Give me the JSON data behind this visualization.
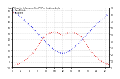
{
  "title_text": "Solar PV/Inverter Performance  Sun  PV Pan   Incidence Angle",
  "blue_color": "#0000dd",
  "red_color": "#dd0000",
  "bg_color": "#ffffff",
  "grid_color": "#aaaaaa",
  "ylim_left": [
    -10,
    95
  ],
  "xlim": [
    0,
    23
  ],
  "yticks_left": [
    -10,
    0,
    10,
    20,
    30,
    40,
    50,
    60,
    70,
    80,
    90
  ],
  "ytick_labels_left": [
    "-10",
    "0",
    "10",
    "20",
    "30",
    "40",
    "50",
    "60",
    "70",
    "80",
    "90"
  ],
  "yticks_right": [
    0,
    10,
    20,
    30,
    40,
    50,
    60,
    70,
    80,
    90
  ],
  "ytick_labels_right": [
    "0",
    "10",
    "20",
    "30",
    "40",
    "50",
    "60",
    "70",
    "80",
    "90"
  ],
  "xticks": [
    0,
    2,
    4,
    6,
    8,
    10,
    12,
    14,
    16,
    18,
    20,
    22
  ],
  "legend_blue": "Sun Altitude",
  "legend_red": "Incidence",
  "blue_x": [
    0,
    1,
    2,
    3,
    4,
    5,
    6,
    7,
    8,
    9,
    10,
    11,
    12,
    13,
    14,
    15,
    16,
    17,
    18,
    19,
    20,
    21,
    22,
    23
  ],
  "blue_y": [
    90,
    84,
    78,
    72,
    65,
    58,
    50,
    42,
    34,
    27,
    21,
    17,
    15,
    17,
    21,
    27,
    34,
    42,
    50,
    58,
    65,
    72,
    78,
    85
  ],
  "red_x": [
    0,
    1,
    2,
    3,
    4,
    5,
    6,
    7,
    8,
    9,
    10,
    11,
    12,
    13,
    14,
    15,
    16,
    17,
    18,
    19,
    20,
    21,
    22,
    23
  ],
  "red_y": [
    -8,
    -5,
    -2,
    2,
    8,
    16,
    26,
    38,
    46,
    50,
    52,
    50,
    46,
    50,
    52,
    50,
    46,
    38,
    26,
    16,
    8,
    2,
    -2,
    -5
  ]
}
